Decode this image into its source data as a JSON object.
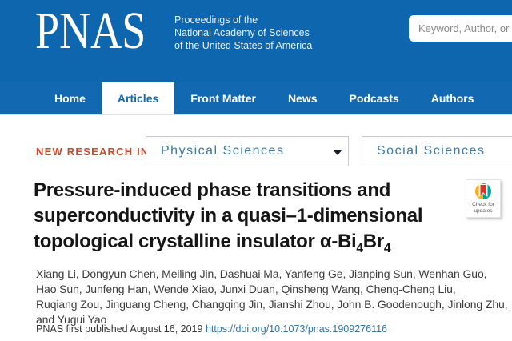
{
  "colors": {
    "header_blue": "#0d66ae",
    "nav_blue": "#1268b1",
    "accent_red": "#d2452a",
    "dropdown_text_blue": "#3d7aa6",
    "link_blue": "#2f73a7",
    "crossmark_yellow": "#f3b01c",
    "crossmark_teal": "#00a3a1",
    "crossmark_red": "#d63426"
  },
  "brand": {
    "logo": "PNAS",
    "tagline_lines": [
      "Proceedings of the",
      "National Academy of Sciences",
      "of the United States of America"
    ]
  },
  "search": {
    "placeholder": "Keyword, Author, or"
  },
  "nav": {
    "items": [
      {
        "label": "Home",
        "active": false
      },
      {
        "label": "Articles",
        "active": true
      },
      {
        "label": "Front Matter",
        "active": false
      },
      {
        "label": "News",
        "active": false
      },
      {
        "label": "Podcasts",
        "active": false
      },
      {
        "label": "Authors",
        "active": false
      }
    ]
  },
  "filter": {
    "label": "NEW RESEARCH IN",
    "dropdowns": [
      {
        "value": "Physical Sciences"
      },
      {
        "value": "Social Sciences"
      }
    ]
  },
  "article": {
    "title_lines": [
      [
        {
          "t": "Pressure-induced phase transitions and"
        }
      ],
      [
        {
          "t": "superconductivity in a quasi–1-dimensional"
        }
      ],
      [
        {
          "t": "topological crystalline insulator α-Bi"
        },
        {
          "t": "4",
          "sub": true
        },
        {
          "t": "Br"
        },
        {
          "t": "4",
          "sub": true
        }
      ]
    ],
    "authors_lines": [
      "Xiang Li, Dongyun Chen, Meiling Jin, Dashuai Ma, Yanfeng Ge, Jianping Sun, Wenhan Guo,",
      "Hao Sun, Junfeng Han, Wende Xiao, Junxi Duan, Qinsheng Wang, Cheng-Cheng Liu,",
      "Ruqiang Zou, Jinguang Cheng, Changqing Jin, Jianshi Zhou, John B. Goodenough, Jinlong Zhu,",
      "and Yugui Yao"
    ],
    "published_prefix": "PNAS first published August 16, 2019 ",
    "doi_link": "https://doi.org/10.1073/pnas.1909276116"
  },
  "crossmark": {
    "line1": "Check for",
    "line2": "updates"
  }
}
